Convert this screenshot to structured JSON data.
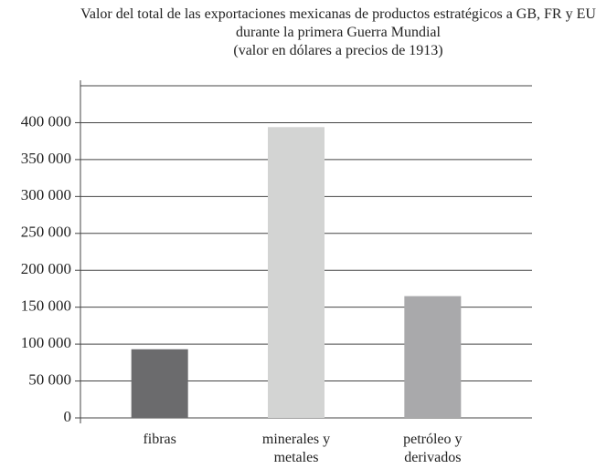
{
  "chart_data": {
    "type": "bar",
    "title": "Valor del total de las exportaciones mexicanas de productos estratégicos a GB, FR y EU durante la primera Guerra Mundial",
    "subtitle": "(valor en dólares a precios de 1913)",
    "categories": [
      "fibras",
      "minerales y metales",
      "petróleo y derivados"
    ],
    "values": [
      93000,
      394000,
      165000
    ],
    "colors": [
      "#6b6b6d",
      "#d3d4d3",
      "#a9a9ab"
    ],
    "ylim": [
      0,
      450000
    ],
    "yticks": [
      0,
      {
        "value": 50000,
        "label": "50 000"
      },
      {
        "value": 100000,
        "label": "100 000"
      },
      {
        "value": 150000,
        "label": "150 000"
      },
      {
        "value": 200000,
        "label": "200 000"
      },
      {
        "value": 250000,
        "label": "250 000"
      },
      {
        "value": 300000,
        "label": "300 000"
      },
      {
        "value": 350000,
        "label": "350 000"
      },
      {
        "value": 400000,
        "label": "400 000"
      }
    ],
    "grid": true
  }
}
